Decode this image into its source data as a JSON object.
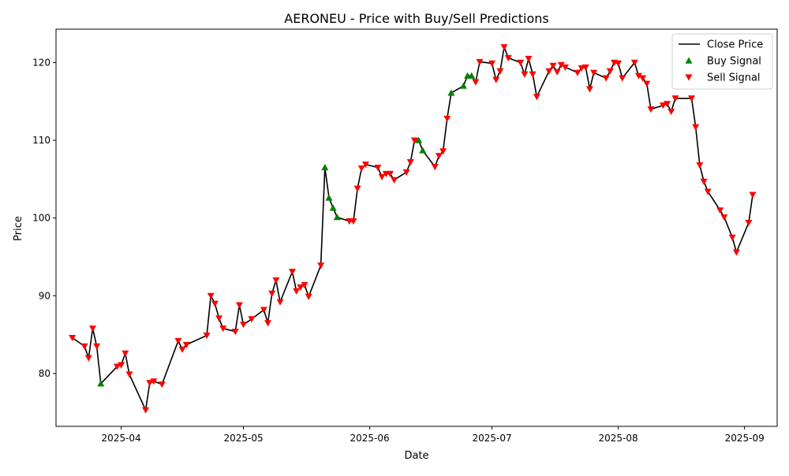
{
  "chart_data": {
    "type": "line",
    "title": "AERONEU - Price with Buy/Sell Predictions",
    "xlabel": "Date",
    "ylabel": "Price",
    "xlim": [
      "2025-03-16",
      "2025-09-09"
    ],
    "ylim": [
      73.2,
      124.3
    ],
    "x_ticks": [
      "2025-04-01",
      "2025-05-01",
      "2025-06-01",
      "2025-07-01",
      "2025-08-01",
      "2025-09-01"
    ],
    "x_tick_labels": [
      "2025-04",
      "2025-05",
      "2025-06",
      "2025-07",
      "2025-08",
      "2025-09"
    ],
    "y_ticks": [
      80,
      90,
      100,
      110,
      120
    ],
    "y_tick_labels": [
      "80",
      "90",
      "100",
      "110",
      "120"
    ],
    "grid": false,
    "legend_position": "top-right",
    "series": [
      {
        "name": "Close Price",
        "kind": "line",
        "color": "#000000",
        "points": [
          [
            "2025-03-20",
            84.6
          ],
          [
            "2025-03-23",
            83.5
          ],
          [
            "2025-03-24",
            82.0
          ],
          [
            "2025-03-25",
            85.8
          ],
          [
            "2025-03-26",
            83.5
          ],
          [
            "2025-03-27",
            78.7
          ],
          [
            "2025-03-31",
            80.9
          ],
          [
            "2025-04-01",
            81.1
          ],
          [
            "2025-04-02",
            82.6
          ],
          [
            "2025-04-03",
            79.9
          ],
          [
            "2025-04-07",
            75.3
          ],
          [
            "2025-04-08",
            78.8
          ],
          [
            "2025-04-09",
            79.0
          ],
          [
            "2025-04-11",
            78.6
          ],
          [
            "2025-04-15",
            84.2
          ],
          [
            "2025-04-16",
            83.1
          ],
          [
            "2025-04-17",
            83.7
          ],
          [
            "2025-04-22",
            84.9
          ],
          [
            "2025-04-23",
            90.0
          ],
          [
            "2025-04-24",
            89.0
          ],
          [
            "2025-04-25",
            87.1
          ],
          [
            "2025-04-26",
            85.8
          ],
          [
            "2025-04-29",
            85.4
          ],
          [
            "2025-04-30",
            88.8
          ],
          [
            "2025-05-01",
            86.3
          ],
          [
            "2025-05-03",
            87.0
          ],
          [
            "2025-05-06",
            88.2
          ],
          [
            "2025-05-07",
            86.5
          ],
          [
            "2025-05-08",
            90.3
          ],
          [
            "2025-05-09",
            92.0
          ],
          [
            "2025-05-10",
            89.2
          ],
          [
            "2025-05-13",
            93.1
          ],
          [
            "2025-05-14",
            90.6
          ],
          [
            "2025-05-15",
            91.1
          ],
          [
            "2025-05-16",
            91.4
          ],
          [
            "2025-05-17",
            89.9
          ],
          [
            "2025-05-20",
            93.9
          ],
          [
            "2025-05-21",
            106.5
          ],
          [
            "2025-05-22",
            102.6
          ],
          [
            "2025-05-23",
            101.3
          ],
          [
            "2025-05-24",
            100.1
          ],
          [
            "2025-05-27",
            99.6
          ],
          [
            "2025-05-28",
            99.6
          ],
          [
            "2025-05-29",
            103.8
          ],
          [
            "2025-05-30",
            106.4
          ],
          [
            "2025-05-31",
            106.9
          ],
          [
            "2025-06-03",
            106.5
          ],
          [
            "2025-06-04",
            105.3
          ],
          [
            "2025-06-05",
            105.7
          ],
          [
            "2025-06-06",
            105.7
          ],
          [
            "2025-06-07",
            104.9
          ],
          [
            "2025-06-10",
            105.9
          ],
          [
            "2025-06-11",
            107.2
          ],
          [
            "2025-06-12",
            110.0
          ],
          [
            "2025-06-13",
            110.0
          ],
          [
            "2025-06-14",
            108.7
          ],
          [
            "2025-06-17",
            106.6
          ],
          [
            "2025-06-18",
            108.0
          ],
          [
            "2025-06-19",
            108.6
          ],
          [
            "2025-06-20",
            112.8
          ],
          [
            "2025-06-21",
            116.1
          ],
          [
            "2025-06-24",
            117.0
          ],
          [
            "2025-06-25",
            118.3
          ],
          [
            "2025-06-26",
            118.3
          ],
          [
            "2025-06-27",
            117.5
          ],
          [
            "2025-06-28",
            120.1
          ],
          [
            "2025-07-01",
            119.9
          ],
          [
            "2025-07-02",
            117.8
          ],
          [
            "2025-07-03",
            118.9
          ],
          [
            "2025-07-04",
            122.0
          ],
          [
            "2025-07-05",
            120.6
          ],
          [
            "2025-07-08",
            120.0
          ],
          [
            "2025-07-09",
            118.5
          ],
          [
            "2025-07-10",
            120.5
          ],
          [
            "2025-07-11",
            118.5
          ],
          [
            "2025-07-12",
            115.6
          ],
          [
            "2025-07-15",
            118.9
          ],
          [
            "2025-07-16",
            119.6
          ],
          [
            "2025-07-17",
            118.8
          ],
          [
            "2025-07-18",
            119.7
          ],
          [
            "2025-07-19",
            119.4
          ],
          [
            "2025-07-22",
            118.7
          ],
          [
            "2025-07-23",
            119.3
          ],
          [
            "2025-07-24",
            119.4
          ],
          [
            "2025-07-25",
            116.6
          ],
          [
            "2025-07-26",
            118.7
          ],
          [
            "2025-07-29",
            118.0
          ],
          [
            "2025-07-30",
            118.9
          ],
          [
            "2025-07-31",
            120.0
          ],
          [
            "2025-08-01",
            119.9
          ],
          [
            "2025-08-02",
            118.0
          ],
          [
            "2025-08-05",
            120.0
          ],
          [
            "2025-08-06",
            118.3
          ],
          [
            "2025-08-07",
            118.0
          ],
          [
            "2025-08-08",
            117.3
          ],
          [
            "2025-08-09",
            114.0
          ],
          [
            "2025-08-12",
            114.5
          ],
          [
            "2025-08-13",
            114.7
          ],
          [
            "2025-08-14",
            113.7
          ],
          [
            "2025-08-15",
            115.4
          ],
          [
            "2025-08-19",
            115.4
          ],
          [
            "2025-08-20",
            111.7
          ],
          [
            "2025-08-21",
            106.8
          ],
          [
            "2025-08-22",
            104.7
          ],
          [
            "2025-08-23",
            103.4
          ],
          [
            "2025-08-26",
            101.0
          ],
          [
            "2025-08-27",
            100.1
          ],
          [
            "2025-08-29",
            97.5
          ],
          [
            "2025-08-30",
            95.6
          ],
          [
            "2025-09-02",
            99.4
          ],
          [
            "2025-09-03",
            103.0
          ]
        ]
      },
      {
        "name": "Buy Signal",
        "kind": "marker-up",
        "color": "#008000",
        "points": [
          [
            "2025-03-27",
            78.7
          ],
          [
            "2025-05-21",
            106.5
          ],
          [
            "2025-05-22",
            102.6
          ],
          [
            "2025-05-23",
            101.3
          ],
          [
            "2025-05-24",
            100.1
          ],
          [
            "2025-06-13",
            110.0
          ],
          [
            "2025-06-14",
            108.7
          ],
          [
            "2025-06-21",
            116.1
          ],
          [
            "2025-06-24",
            117.0
          ],
          [
            "2025-06-25",
            118.3
          ],
          [
            "2025-06-26",
            118.3
          ]
        ]
      },
      {
        "name": "Sell Signal",
        "kind": "marker-down",
        "color": "#ff0000",
        "points": [
          [
            "2025-03-20",
            84.6
          ],
          [
            "2025-03-23",
            83.5
          ],
          [
            "2025-03-24",
            82.0
          ],
          [
            "2025-03-25",
            85.8
          ],
          [
            "2025-03-26",
            83.5
          ],
          [
            "2025-03-31",
            80.9
          ],
          [
            "2025-04-01",
            81.1
          ],
          [
            "2025-04-02",
            82.6
          ],
          [
            "2025-04-03",
            79.9
          ],
          [
            "2025-04-07",
            75.3
          ],
          [
            "2025-04-08",
            78.8
          ],
          [
            "2025-04-09",
            79.0
          ],
          [
            "2025-04-11",
            78.6
          ],
          [
            "2025-04-15",
            84.2
          ],
          [
            "2025-04-16",
            83.1
          ],
          [
            "2025-04-17",
            83.7
          ],
          [
            "2025-04-22",
            84.9
          ],
          [
            "2025-04-23",
            90.0
          ],
          [
            "2025-04-24",
            89.0
          ],
          [
            "2025-04-25",
            87.1
          ],
          [
            "2025-04-26",
            85.8
          ],
          [
            "2025-04-29",
            85.4
          ],
          [
            "2025-04-30",
            88.8
          ],
          [
            "2025-05-01",
            86.3
          ],
          [
            "2025-05-03",
            87.0
          ],
          [
            "2025-05-06",
            88.2
          ],
          [
            "2025-05-07",
            86.5
          ],
          [
            "2025-05-08",
            90.3
          ],
          [
            "2025-05-09",
            92.0
          ],
          [
            "2025-05-10",
            89.2
          ],
          [
            "2025-05-13",
            93.1
          ],
          [
            "2025-05-14",
            90.6
          ],
          [
            "2025-05-15",
            91.1
          ],
          [
            "2025-05-16",
            91.4
          ],
          [
            "2025-05-17",
            89.9
          ],
          [
            "2025-05-20",
            93.9
          ],
          [
            "2025-05-27",
            99.6
          ],
          [
            "2025-05-28",
            99.6
          ],
          [
            "2025-05-29",
            103.8
          ],
          [
            "2025-05-30",
            106.4
          ],
          [
            "2025-05-31",
            106.9
          ],
          [
            "2025-06-03",
            106.5
          ],
          [
            "2025-06-04",
            105.3
          ],
          [
            "2025-06-05",
            105.7
          ],
          [
            "2025-06-06",
            105.7
          ],
          [
            "2025-06-07",
            104.9
          ],
          [
            "2025-06-10",
            105.9
          ],
          [
            "2025-06-11",
            107.2
          ],
          [
            "2025-06-12",
            110.0
          ],
          [
            "2025-06-17",
            106.6
          ],
          [
            "2025-06-18",
            108.0
          ],
          [
            "2025-06-19",
            108.6
          ],
          [
            "2025-06-20",
            112.8
          ],
          [
            "2025-06-27",
            117.5
          ],
          [
            "2025-06-28",
            120.1
          ],
          [
            "2025-07-01",
            119.9
          ],
          [
            "2025-07-02",
            117.8
          ],
          [
            "2025-07-03",
            118.9
          ],
          [
            "2025-07-04",
            122.0
          ],
          [
            "2025-07-05",
            120.6
          ],
          [
            "2025-07-08",
            120.0
          ],
          [
            "2025-07-09",
            118.5
          ],
          [
            "2025-07-10",
            120.5
          ],
          [
            "2025-07-11",
            118.5
          ],
          [
            "2025-07-12",
            115.6
          ],
          [
            "2025-07-15",
            118.9
          ],
          [
            "2025-07-16",
            119.6
          ],
          [
            "2025-07-17",
            118.8
          ],
          [
            "2025-07-18",
            119.7
          ],
          [
            "2025-07-19",
            119.4
          ],
          [
            "2025-07-22",
            118.7
          ],
          [
            "2025-07-23",
            119.3
          ],
          [
            "2025-07-24",
            119.4
          ],
          [
            "2025-07-25",
            116.6
          ],
          [
            "2025-07-26",
            118.7
          ],
          [
            "2025-07-29",
            118.0
          ],
          [
            "2025-07-30",
            118.9
          ],
          [
            "2025-07-31",
            120.0
          ],
          [
            "2025-08-01",
            119.9
          ],
          [
            "2025-08-02",
            118.0
          ],
          [
            "2025-08-05",
            120.0
          ],
          [
            "2025-08-06",
            118.3
          ],
          [
            "2025-08-07",
            118.0
          ],
          [
            "2025-08-08",
            117.3
          ],
          [
            "2025-08-09",
            114.0
          ],
          [
            "2025-08-12",
            114.5
          ],
          [
            "2025-08-13",
            114.7
          ],
          [
            "2025-08-14",
            113.7
          ],
          [
            "2025-08-15",
            115.4
          ],
          [
            "2025-08-19",
            115.4
          ],
          [
            "2025-08-20",
            111.7
          ],
          [
            "2025-08-21",
            106.8
          ],
          [
            "2025-08-22",
            104.7
          ],
          [
            "2025-08-23",
            103.4
          ],
          [
            "2025-08-26",
            101.0
          ],
          [
            "2025-08-27",
            100.1
          ],
          [
            "2025-08-29",
            97.5
          ],
          [
            "2025-08-30",
            95.6
          ],
          [
            "2025-09-02",
            99.4
          ],
          [
            "2025-09-03",
            103.0
          ]
        ]
      }
    ]
  }
}
